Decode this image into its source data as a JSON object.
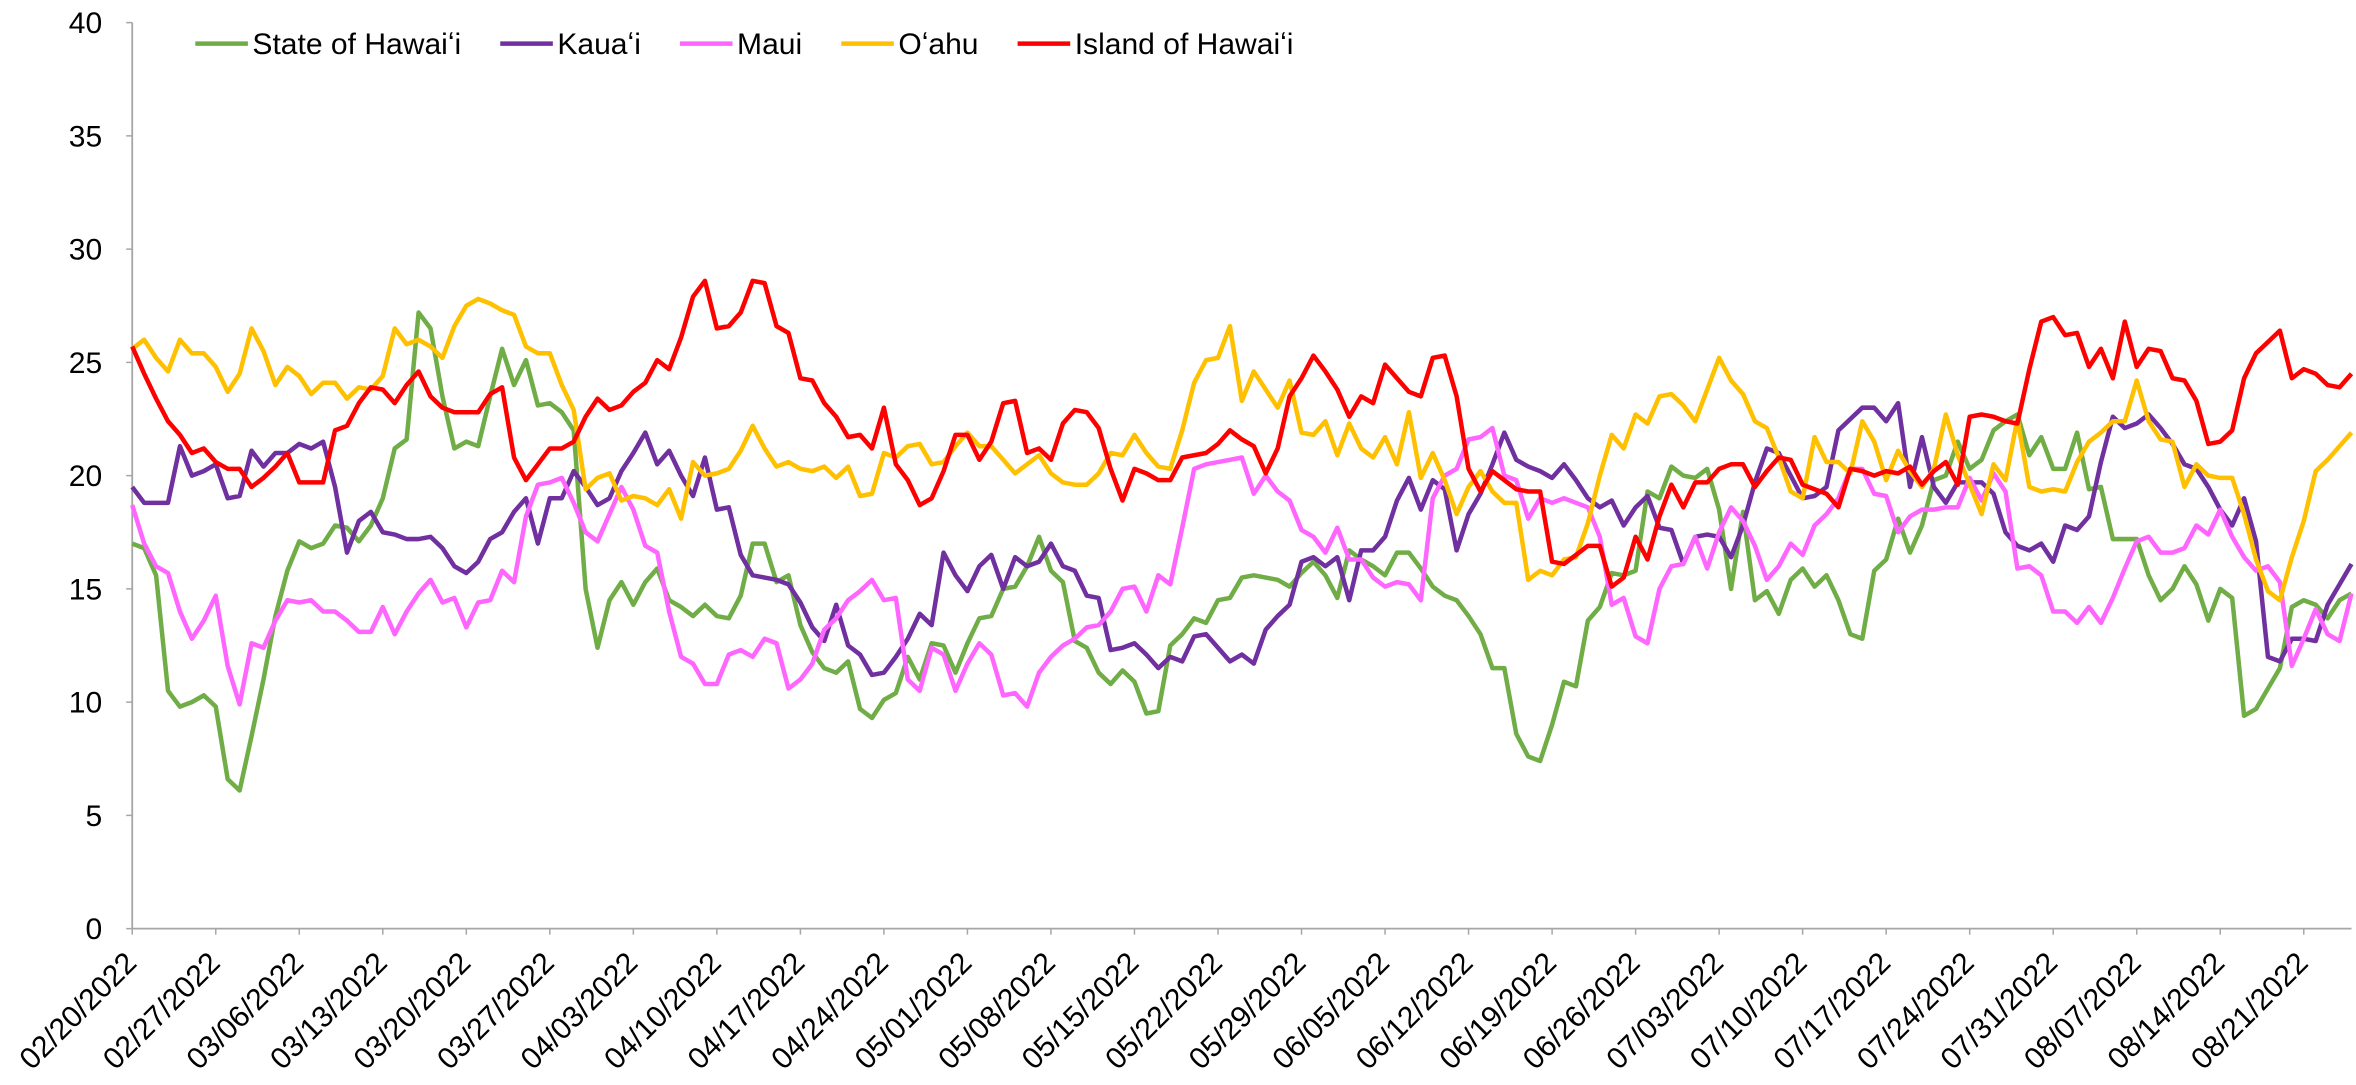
{
  "chart_data": {
    "type": "line",
    "categories": [
      "02/20/2022",
      null,
      null,
      null,
      null,
      null,
      null,
      "02/27/2022",
      null,
      null,
      null,
      null,
      null,
      null,
      "03/06/2022",
      null,
      null,
      null,
      null,
      null,
      null,
      "03/13/2022",
      null,
      null,
      null,
      null,
      null,
      null,
      "03/20/2022",
      null,
      null,
      null,
      null,
      null,
      null,
      "03/27/2022",
      null,
      null,
      null,
      null,
      null,
      null,
      "04/03/2022",
      null,
      null,
      null,
      null,
      null,
      null,
      "04/10/2022",
      null,
      null,
      null,
      null,
      null,
      null,
      "04/17/2022",
      null,
      null,
      null,
      null,
      null,
      null,
      "04/24/2022",
      null,
      null,
      null,
      null,
      null,
      null,
      "05/01/2022",
      null,
      null,
      null,
      null,
      null,
      null,
      "05/08/2022",
      null,
      null,
      null,
      null,
      null,
      null,
      "05/15/2022",
      null,
      null,
      null,
      null,
      null,
      null,
      "05/22/2022",
      null,
      null,
      null,
      null,
      null,
      null,
      "05/29/2022",
      null,
      null,
      null,
      null,
      null,
      null,
      "06/05/2022",
      null,
      null,
      null,
      null,
      null,
      null,
      "06/12/2022",
      null,
      null,
      null,
      null,
      null,
      null,
      "06/19/2022",
      null,
      null,
      null,
      null,
      null,
      null,
      "06/26/2022",
      null,
      null,
      null,
      null,
      null,
      null,
      "07/03/2022",
      null,
      null,
      null,
      null,
      null,
      null,
      "07/10/2022",
      null,
      null,
      null,
      null,
      null,
      null,
      "07/17/2022",
      null,
      null,
      null,
      null,
      null,
      null,
      "07/24/2022",
      null,
      null,
      null,
      null,
      null,
      null,
      "07/31/2022",
      null,
      null,
      null,
      null,
      null,
      null,
      "08/07/2022",
      null,
      null,
      null,
      null,
      null,
      null,
      "08/14/2022",
      null,
      null,
      null,
      null,
      null,
      null,
      "08/21/2022",
      null,
      null,
      null,
      null
    ],
    "series": [
      {
        "name": "State of Hawaiʻi",
        "color": "#70ad47",
        "values": [
          17,
          16.8,
          15.6,
          10.5,
          9.8,
          10,
          10.3,
          9.8,
          6.6,
          6.1,
          8.5,
          11,
          13.8,
          15.8,
          17.1,
          16.8,
          17,
          17.8,
          17.7,
          17.1,
          17.8,
          19,
          21.2,
          21.6,
          27.2,
          26.5,
          23.5,
          21.2,
          21.5,
          21.3,
          23.5,
          25.6,
          24,
          25.1,
          23.1,
          23.2,
          22.8,
          22,
          15,
          12.4,
          14.5,
          15.3,
          14.3,
          15.3,
          15.9,
          14.5,
          14.2,
          13.8,
          14.3,
          13.8,
          13.7,
          14.7,
          17,
          17,
          15.3,
          15.6,
          13.4,
          12.2,
          11.5,
          11.3,
          11.8,
          9.7,
          9.3,
          10.1,
          10.4,
          12,
          11,
          12.6,
          12.5,
          11.3,
          12.6,
          13.7,
          13.8,
          15,
          15.1,
          16,
          17.3,
          15.8,
          15.3,
          12.7,
          12.4,
          11.3,
          10.8,
          11.4,
          10.9,
          9.5,
          9.6,
          12.5,
          13,
          13.7,
          13.5,
          14.5,
          14.6,
          15.5,
          15.6,
          15.5,
          15.4,
          15.1,
          15.7,
          16.2,
          15.6,
          14.6,
          16.7,
          16.3,
          16,
          15.6,
          16.6,
          16.6,
          15.9,
          15.1,
          14.7,
          14.5,
          13.8,
          13,
          11.5,
          11.5,
          8.6,
          7.6,
          7.4,
          9,
          10.9,
          10.7,
          13.6,
          14.2,
          15.7,
          15.6,
          15.8,
          19.3,
          19,
          20.4,
          20,
          19.9,
          20.3,
          18.5,
          15,
          18.4,
          14.5,
          14.9,
          13.9,
          15.4,
          15.9,
          15.1,
          15.6,
          14.5,
          13,
          12.8,
          15.8,
          16.3,
          18.1,
          16.6,
          17.8,
          19.8,
          20,
          21.5,
          20.3,
          20.7,
          22,
          22.4,
          22.7,
          20.9,
          21.7,
          20.3,
          20.3,
          21.9,
          19.4,
          19.5,
          17.2,
          17.2,
          17.2,
          15.6,
          14.5,
          15,
          16,
          15.2,
          13.6,
          15,
          14.6,
          9.4,
          9.7,
          10.6,
          11.5,
          14.2,
          14.5,
          14.3,
          13.7,
          14.5,
          14.8
        ]
      },
      {
        "name": "Kauaʻi",
        "color": "#7030a0",
        "values": [
          19.5,
          18.8,
          18.8,
          18.8,
          21.3,
          20,
          20.2,
          20.5,
          19,
          19.1,
          21.1,
          20.4,
          21,
          21,
          21.4,
          21.2,
          21.5,
          19.5,
          16.6,
          18,
          18.4,
          17.5,
          17.4,
          17.2,
          17.2,
          17.3,
          16.8,
          16,
          15.7,
          16.2,
          17.2,
          17.5,
          18.4,
          19,
          17,
          19,
          19,
          20.2,
          19.5,
          18.7,
          19,
          20.2,
          21,
          21.9,
          20.5,
          21.1,
          20,
          19.1,
          20.8,
          18.5,
          18.6,
          16.5,
          15.6,
          15.5,
          15.4,
          15.2,
          14.4,
          13.3,
          12.7,
          14.3,
          12.5,
          12.1,
          11.2,
          11.3,
          12,
          12.8,
          13.9,
          13.4,
          16.6,
          15.6,
          14.9,
          16,
          16.5,
          15,
          16.4,
          16,
          16.2,
          17,
          16,
          15.8,
          14.7,
          14.6,
          12.3,
          12.4,
          12.6,
          12.1,
          11.5,
          12,
          11.8,
          12.9,
          13,
          12.4,
          11.8,
          12.1,
          11.7,
          13.2,
          13.8,
          14.3,
          16.2,
          16.4,
          16,
          16.4,
          14.5,
          16.7,
          16.7,
          17.3,
          18.9,
          19.9,
          18.5,
          19.8,
          19.4,
          16.7,
          18.3,
          19.2,
          20.5,
          21.9,
          20.7,
          20.4,
          20.2,
          19.9,
          20.5,
          19.8,
          19,
          18.6,
          18.9,
          17.8,
          18.6,
          19.1,
          17.7,
          17.6,
          16.1,
          17.3,
          17.4,
          17.3,
          16.4,
          17.8,
          19.7,
          21.2,
          21,
          20,
          19,
          19.1,
          19.5,
          22,
          22.5,
          23,
          23,
          22.4,
          23.2,
          19.5,
          21.7,
          19.5,
          18.8,
          19.7,
          19.7,
          19.7,
          19.2,
          17.5,
          16.9,
          16.7,
          17,
          16.2,
          17.8,
          17.6,
          18.2,
          20.6,
          22.6,
          22.1,
          22.3,
          22.7,
          22.1,
          21.4,
          20.5,
          20.3,
          19.5,
          18.5,
          17.8,
          19,
          17.1,
          12,
          11.8,
          12.8,
          12.8,
          12.7,
          14.3,
          15.2,
          16.1
        ]
      },
      {
        "name": "Maui",
        "color": "#ff66ff",
        "values": [
          18.7,
          17,
          16,
          15.7,
          14,
          12.8,
          13.6,
          14.7,
          11.6,
          9.9,
          12.6,
          12.4,
          13.6,
          14.5,
          14.4,
          14.5,
          14,
          14,
          13.6,
          13.1,
          13.1,
          14.2,
          13,
          14,
          14.8,
          15.4,
          14.4,
          14.6,
          13.3,
          14.4,
          14.5,
          15.8,
          15.3,
          18.2,
          19.6,
          19.7,
          19.9,
          18.8,
          17.5,
          17.1,
          18.3,
          19.5,
          18.5,
          16.9,
          16.6,
          14,
          12,
          11.7,
          10.8,
          10.8,
          12.1,
          12.3,
          12,
          12.8,
          12.6,
          10.6,
          11,
          11.7,
          13.2,
          13.7,
          14.5,
          14.9,
          15.4,
          14.5,
          14.6,
          11,
          10.5,
          12.4,
          12.1,
          10.5,
          11.7,
          12.6,
          12.1,
          10.3,
          10.4,
          9.8,
          11.3,
          12,
          12.5,
          12.8,
          13.3,
          13.4,
          14,
          15,
          15.1,
          14,
          15.6,
          15.2,
          17.7,
          20.3,
          20.5,
          20.6,
          20.7,
          20.8,
          19.2,
          20,
          19.3,
          18.9,
          17.6,
          17.3,
          16.6,
          17.7,
          16.3,
          16.3,
          15.5,
          15.1,
          15.3,
          15.2,
          14.5,
          19,
          20,
          20.3,
          21.6,
          21.7,
          22.1,
          20,
          19.8,
          18.1,
          19,
          18.8,
          19,
          18.8,
          18.6,
          17.3,
          14.3,
          14.6,
          12.9,
          12.6,
          15,
          16,
          16.1,
          17.3,
          15.9,
          17.5,
          18.6,
          18,
          16.9,
          15.4,
          16,
          17,
          16.5,
          17.8,
          18.3,
          19,
          20.3,
          20.3,
          19.2,
          19.1,
          17.5,
          18.2,
          18.5,
          18.5,
          18.6,
          18.6,
          19.9,
          18.9,
          20.1,
          19.3,
          15.9,
          16,
          15.6,
          14,
          14,
          13.5,
          14.2,
          13.5,
          14.6,
          15.9,
          17.1,
          17.3,
          16.6,
          16.6,
          16.8,
          17.8,
          17.4,
          18.5,
          17.3,
          16.4,
          15.8,
          16,
          15.3,
          11.6,
          12.8,
          14.1,
          13,
          12.7,
          14.8
        ]
      },
      {
        "name": "Oʻahu",
        "color": "#ffc000",
        "values": [
          25.6,
          26,
          25.2,
          24.6,
          26,
          25.4,
          25.4,
          24.8,
          23.7,
          24.5,
          26.5,
          25.5,
          24,
          24.8,
          24.4,
          23.6,
          24.1,
          24.1,
          23.4,
          23.9,
          23.8,
          24.4,
          26.5,
          25.8,
          26,
          25.7,
          25.2,
          26.6,
          27.5,
          27.8,
          27.6,
          27.3,
          27.1,
          25.7,
          25.4,
          25.4,
          24,
          22.9,
          19.4,
          19.9,
          20.1,
          18.9,
          19.1,
          19,
          18.7,
          19.4,
          18.1,
          20.6,
          20,
          20.1,
          20.3,
          21.1,
          22.2,
          21.2,
          20.4,
          20.6,
          20.3,
          20.2,
          20.4,
          19.9,
          20.4,
          19.1,
          19.2,
          21,
          20.8,
          21.3,
          21.4,
          20.5,
          20.6,
          21.3,
          21.9,
          21.3,
          21.3,
          20.7,
          20.1,
          20.5,
          20.9,
          20.1,
          19.7,
          19.6,
          19.6,
          20.1,
          21,
          20.9,
          21.8,
          21,
          20.4,
          20.3,
          22,
          24.1,
          25.1,
          25.2,
          26.6,
          23.3,
          24.6,
          23.8,
          23,
          24.2,
          21.9,
          21.8,
          22.4,
          20.9,
          22.3,
          21.2,
          20.8,
          21.7,
          20.5,
          22.8,
          19.9,
          21,
          19.8,
          18.3,
          19.5,
          20.2,
          19.3,
          18.8,
          18.8,
          15.4,
          15.8,
          15.6,
          16.3,
          16.4,
          17.9,
          20,
          21.8,
          21.2,
          22.7,
          22.3,
          23.5,
          23.6,
          23.1,
          22.4,
          23.8,
          25.2,
          24.2,
          23.6,
          22.4,
          22.1,
          20.8,
          19.3,
          19,
          21.7,
          20.6,
          20.6,
          20.1,
          22.4,
          21.5,
          19.8,
          21.1,
          20.2,
          19.5,
          20.3,
          22.7,
          20.9,
          19.6,
          18.3,
          20.5,
          19.8,
          22.5,
          19.5,
          19.3,
          19.4,
          19.3,
          20.6,
          21.5,
          21.9,
          22.4,
          22.4,
          24.2,
          22.4,
          21.6,
          21.5,
          19.5,
          20.5,
          20,
          19.9,
          19.9,
          18.3,
          16.3,
          14.9,
          14.5,
          16.4,
          18,
          20.2,
          20.7,
          21.3,
          21.9
        ]
      },
      {
        "name": "Island of Hawaiʻi",
        "color": "#ff0000",
        "values": [
          25.7,
          24.5,
          23.4,
          22.4,
          21.8,
          21,
          21.2,
          20.6,
          20.3,
          20.3,
          19.5,
          19.9,
          20.4,
          21,
          19.7,
          19.7,
          19.7,
          22,
          22.2,
          23.2,
          23.9,
          23.8,
          23.2,
          24,
          24.6,
          23.5,
          23,
          22.8,
          22.8,
          22.8,
          23.6,
          23.9,
          20.8,
          19.8,
          20.5,
          21.2,
          21.2,
          21.5,
          22.6,
          23.4,
          22.9,
          23.1,
          23.7,
          24.1,
          25.1,
          24.7,
          26.1,
          27.9,
          28.6,
          26.5,
          26.6,
          27.2,
          28.6,
          28.5,
          26.6,
          26.3,
          24.3,
          24.2,
          23.2,
          22.6,
          21.7,
          21.8,
          21.2,
          23,
          20.5,
          19.8,
          18.7,
          19,
          20.2,
          21.8,
          21.8,
          20.7,
          21.5,
          23.2,
          23.3,
          21,
          21.2,
          20.7,
          22.3,
          22.9,
          22.8,
          22.1,
          20.3,
          18.9,
          20.3,
          20.1,
          19.8,
          19.8,
          20.8,
          20.9,
          21,
          21.4,
          22,
          21.6,
          21.3,
          20.1,
          21.2,
          23.5,
          24.3,
          25.3,
          24.6,
          23.8,
          22.6,
          23.5,
          23.2,
          24.9,
          24.3,
          23.7,
          23.5,
          25.2,
          25.3,
          23.5,
          20.3,
          19.3,
          20.2,
          19.8,
          19.4,
          19.3,
          19.3,
          16.2,
          16.1,
          16.5,
          16.9,
          16.9,
          15.1,
          15.5,
          17.3,
          16.3,
          18.2,
          19.6,
          18.6,
          19.7,
          19.7,
          20.3,
          20.5,
          20.5,
          19.5,
          20.2,
          20.8,
          20.7,
          19.6,
          19.4,
          19.2,
          18.6,
          20.3,
          20.2,
          20,
          20.2,
          20.1,
          20.4,
          19.6,
          20.2,
          20.6,
          19.6,
          22.6,
          22.7,
          22.6,
          22.4,
          22.3,
          24.7,
          26.8,
          27,
          26.2,
          26.3,
          24.8,
          25.6,
          24.3,
          26.8,
          24.8,
          25.6,
          25.5,
          24.3,
          24.2,
          23.3,
          21.4,
          21.5,
          22,
          24.3,
          25.4,
          25.9,
          26.4,
          24.3,
          24.7,
          24.5,
          24,
          23.9,
          24.5
        ]
      }
    ],
    "ylim": [
      0,
      40
    ],
    "yticks": [
      0,
      5,
      10,
      15,
      20,
      25,
      30,
      35,
      40
    ],
    "grid": false
  }
}
